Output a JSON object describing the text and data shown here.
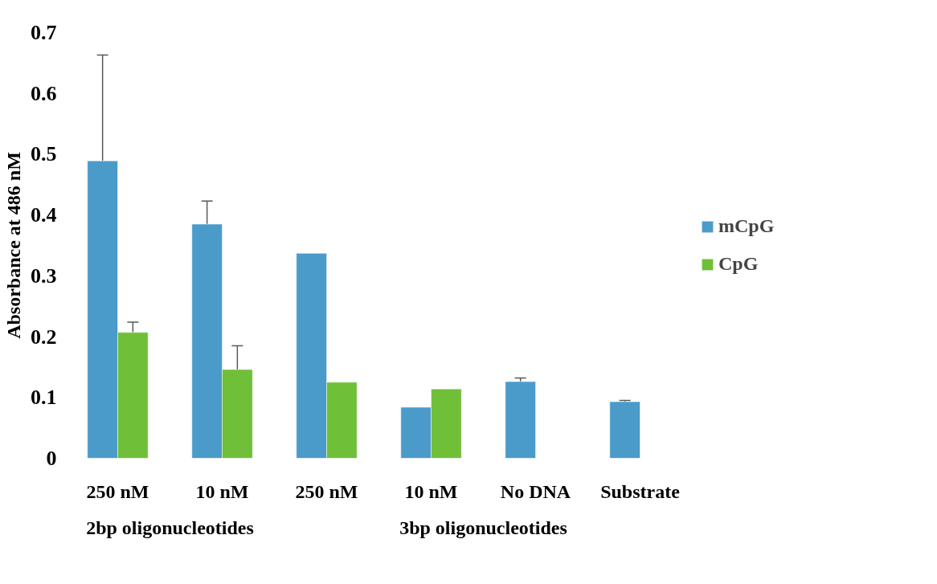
{
  "chart_data": {
    "type": "bar",
    "ylabel": "Absorbance at 486 nM",
    "categories": [
      "250 nM",
      "10 nM",
      "250 nM",
      "10 nM",
      "No DNA",
      "Substrate"
    ],
    "annotations": [
      "2bp oligonucleotides",
      "3bp oligonucleotides"
    ],
    "series": [
      {
        "name": "mCpG",
        "color": "#4a9bca",
        "values": [
          0.489,
          0.385,
          0.337,
          0.084,
          0.126,
          0.093
        ],
        "errors": [
          [
            0.489,
            0.663
          ],
          [
            0.385,
            0.423
          ],
          null,
          null,
          [
            0.126,
            0.132
          ],
          [
            0.093,
            0.095
          ]
        ]
      },
      {
        "name": "CpG",
        "color": "#70bf39",
        "values": [
          0.207,
          0.146,
          0.125,
          0.114,
          null,
          null
        ],
        "errors": [
          [
            0.207,
            0.224
          ],
          [
            0.146,
            0.185
          ],
          null,
          null,
          null,
          null
        ]
      }
    ],
    "ylim": [
      0,
      0.7
    ],
    "yticks": [
      0,
      0.1,
      0.2,
      0.3,
      0.4,
      0.5,
      0.6,
      0.7
    ],
    "grid": false,
    "legend": "right"
  }
}
